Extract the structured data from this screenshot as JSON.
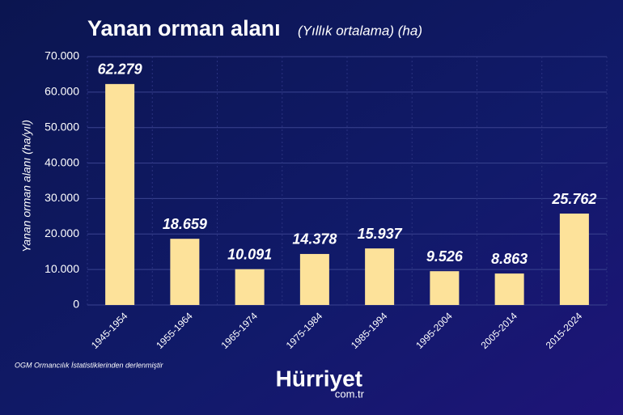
{
  "chart_data": {
    "type": "bar",
    "title": "Yanan orman alanı",
    "subtitle": "(Yıllık ortalama) (ha)",
    "y_label": "Yanan orman alanı (ha/yıl)",
    "categories": [
      "1945-1954",
      "1955-1964",
      "1965-1974",
      "1975-1984",
      "1985-1994",
      "1995-2004",
      "2005-2014",
      "2015-2024"
    ],
    "values": [
      62279,
      18659,
      10091,
      14378,
      15937,
      9526,
      8863,
      25762
    ],
    "value_labels": [
      "62.279",
      "18.659",
      "10.091",
      "14.378",
      "15.937",
      "9.526",
      "8.863",
      "25.762"
    ],
    "color": "#fde29a",
    "ylim": [
      0,
      70000
    ],
    "yticks": [
      0,
      {
        "value": 10000,
        "label": "10.000"
      },
      {
        "value": 20000,
        "label": "20.000"
      },
      {
        "value": 30000,
        "label": "30.000"
      },
      {
        "value": 40000,
        "label": "40.000"
      },
      {
        "value": 50000,
        "label": "50.000"
      },
      {
        "value": 60000,
        "label": "60.000"
      },
      {
        "value": 70000,
        "label": "70.000"
      }
    ],
    "grid": true
  },
  "source": "OGM Ormancılık İstatistiklerinden derlenmiştir",
  "brand": {
    "name": "Hürriyet",
    "domain": "com.tr"
  }
}
